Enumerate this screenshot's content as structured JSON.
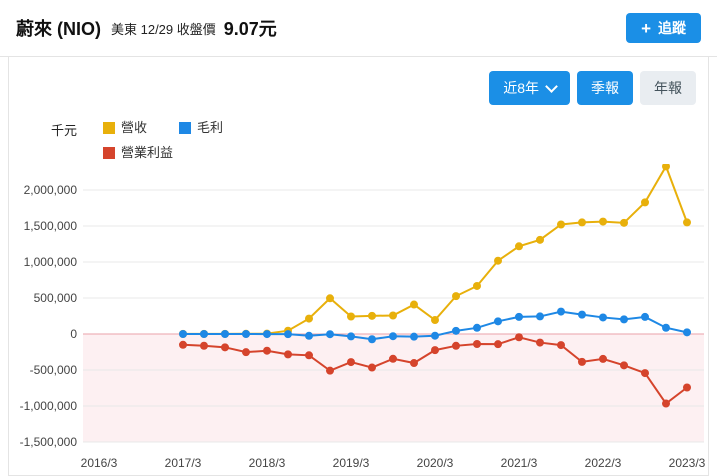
{
  "colors": {
    "accent": "#1b8fe6",
    "annual_button_bg": "#e9edf1",
    "annual_button_text": "#44535c"
  },
  "header": {
    "stock_name": "蔚來 (NIO)",
    "market_info": "美東 12/29 收盤價",
    "close_price": "9.07元",
    "follow_plus": "+",
    "follow_label": "追蹤"
  },
  "controls": {
    "range_label": "近8年",
    "quarterly_label": "季報",
    "annual_label": "年報"
  },
  "chart_data": {
    "type": "line",
    "unit_label": "千元",
    "legend_position": "top-left",
    "grid": true,
    "x_tick_labels": [
      "2016/3",
      "2017/3",
      "2018/3",
      "2019/3",
      "2020/3",
      "2021/3",
      "2022/3",
      "2023/3"
    ],
    "x_points": [
      "2017/3",
      "2017/6",
      "2017/9",
      "2017/12",
      "2018/3",
      "2018/6",
      "2018/9",
      "2018/12",
      "2019/3",
      "2019/6",
      "2019/9",
      "2019/12",
      "2020/3",
      "2020/6",
      "2020/9",
      "2020/12",
      "2021/3",
      "2021/6",
      "2021/9",
      "2021/12",
      "2022/3",
      "2022/6",
      "2022/9",
      "2022/12",
      "2023/3"
    ],
    "y_tick_labels": [
      "2,000,000",
      "1,500,000",
      "1,000,000",
      "500,000",
      "0",
      "-500,000",
      "-1,000,000",
      "-1,500,000"
    ],
    "ylim": [
      -1500000,
      2000000
    ],
    "y_tick_step": 500000,
    "series": [
      {
        "name": "營收",
        "color": "#e8b00b",
        "values": [
          1000,
          1000,
          2000,
          3000,
          5000,
          46000,
          214000,
          496000,
          243000,
          252000,
          257000,
          409000,
          194000,
          526000,
          667000,
          1018000,
          1218000,
          1308000,
          1521000,
          1550000,
          1561000,
          1544000,
          1828000,
          2328000,
          1550000
        ]
      },
      {
        "name": "毛利",
        "color": "#1e88e5",
        "values": [
          0,
          0,
          0,
          0,
          -1000,
          -2000,
          -25000,
          -3000,
          -33000,
          -73000,
          -31000,
          -37000,
          -24000,
          44000,
          86000,
          176000,
          238000,
          244000,
          311000,
          269000,
          230000,
          203000,
          237000,
          87000,
          23000
        ]
      },
      {
        "name": "營業利益",
        "color": "#d5442c",
        "values": [
          -150000,
          -163000,
          -185000,
          -252000,
          -232000,
          -283000,
          -296000,
          -509000,
          -390000,
          -466000,
          -344000,
          -403000,
          -224000,
          -164000,
          -139000,
          -141000,
          -45000,
          -119000,
          -154000,
          -387000,
          -346000,
          -435000,
          -543000,
          -966000,
          -743000
        ]
      }
    ],
    "negative_region_color": "#fdf0f2",
    "zero_line_color": "#eaa2aa",
    "grid_color": "#e8e8e8",
    "axis_text_color": "#444"
  }
}
